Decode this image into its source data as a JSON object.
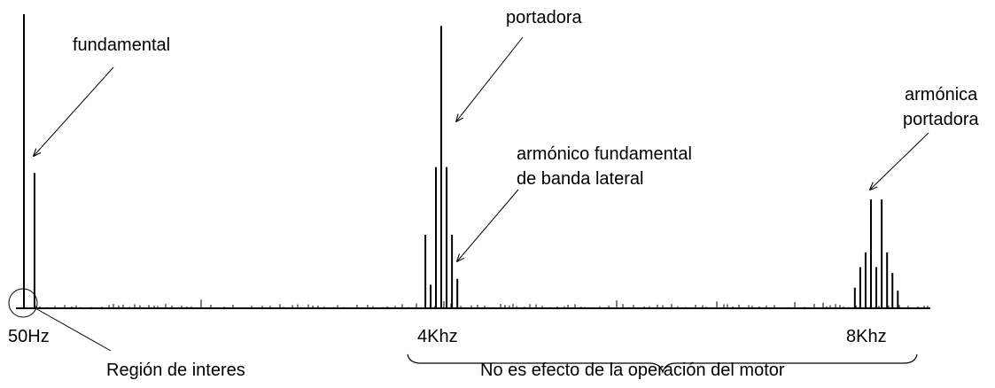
{
  "chart_data": {
    "type": "spectrum",
    "x_tick_labels": [
      "50Hz",
      "4Khz",
      "8Khz"
    ],
    "annotations": {
      "fundamental": "fundamental",
      "carrier": "portadora",
      "sideband_line1": "armónico fundamental",
      "sideband_line2": "de banda lateral",
      "carrier_harmonic_line1": "armónica",
      "carrier_harmonic_line2": "portadora",
      "region": "Región de interes",
      "brace": "No es efecto de la operación del motor"
    },
    "peaks": [
      {
        "x": 50,
        "height": 1.0
      },
      {
        "x": 150,
        "height": 0.46
      },
      {
        "x": 3850,
        "height": 0.25
      },
      {
        "x": 3900,
        "height": 0.08
      },
      {
        "x": 3950,
        "height": 0.48
      },
      {
        "x": 4000,
        "height": 0.96
      },
      {
        "x": 4050,
        "height": 0.48
      },
      {
        "x": 4100,
        "height": 0.25
      },
      {
        "x": 4150,
        "height": 0.1
      },
      {
        "x": 7850,
        "height": 0.07
      },
      {
        "x": 7900,
        "height": 0.14
      },
      {
        "x": 7950,
        "height": 0.19
      },
      {
        "x": 8000,
        "height": 0.37
      },
      {
        "x": 8050,
        "height": 0.14
      },
      {
        "x": 8100,
        "height": 0.37
      },
      {
        "x": 8150,
        "height": 0.19
      },
      {
        "x": 8200,
        "height": 0.12
      },
      {
        "x": 8250,
        "height": 0.06
      }
    ]
  }
}
